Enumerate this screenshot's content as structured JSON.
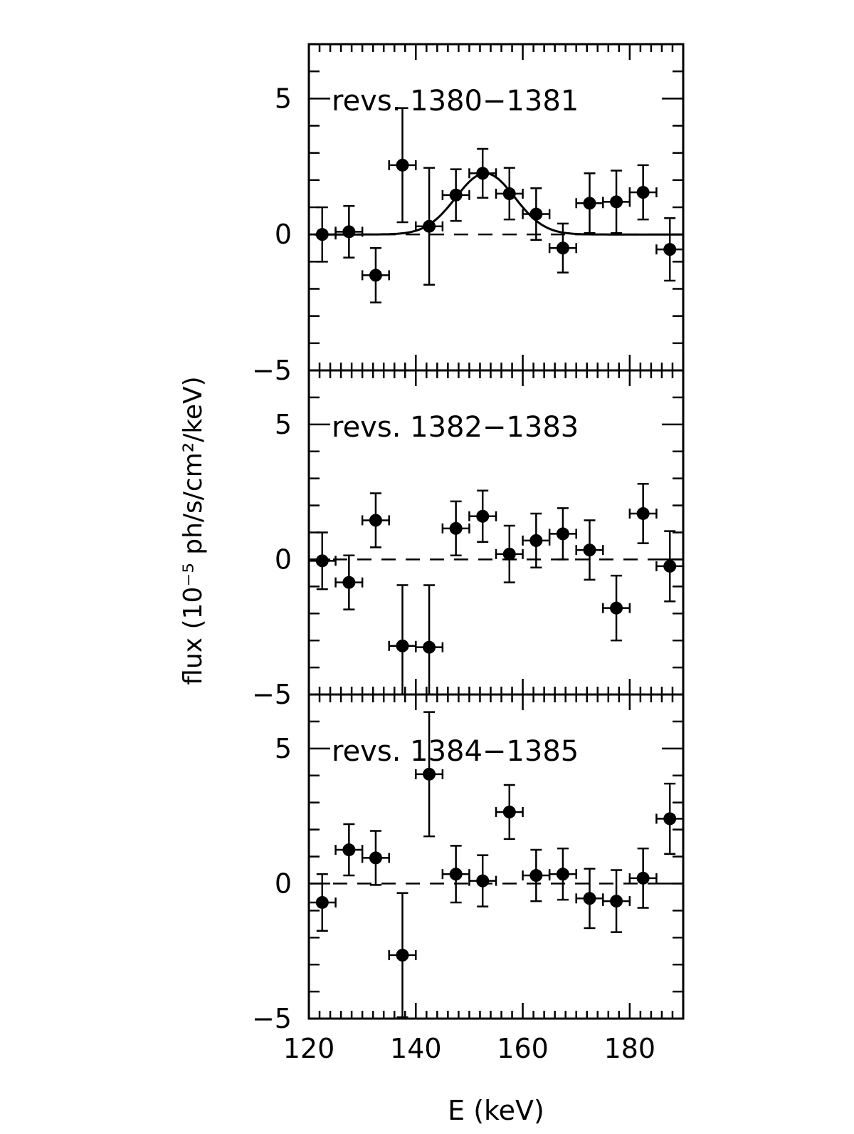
{
  "chart_data": [
    {
      "type": "scatter",
      "label": "revs. 1380−1381",
      "ylim": [
        -5,
        7
      ],
      "yticks": [
        5,
        0,
        -5
      ],
      "ytick_labels": [
        "5",
        "0",
        "−5"
      ],
      "fit": {
        "type": "gaussian",
        "amplitude": 2.25,
        "center": 153.0,
        "sigma": 5.5
      },
      "points": [
        {
          "x": 122.5,
          "y": 0.0,
          "xerr": 2.5,
          "yerr": 1.0
        },
        {
          "x": 127.5,
          "y": 0.1,
          "xerr": 2.5,
          "yerr": 0.95
        },
        {
          "x": 132.5,
          "y": -1.5,
          "xerr": 2.5,
          "yerr": 1.0
        },
        {
          "x": 137.5,
          "y": 2.55,
          "xerr": 2.5,
          "yerr": 2.1
        },
        {
          "x": 142.5,
          "y": 0.3,
          "xerr": 2.5,
          "yerr": 2.15
        },
        {
          "x": 147.5,
          "y": 1.45,
          "xerr": 2.5,
          "yerr": 0.95
        },
        {
          "x": 152.5,
          "y": 2.25,
          "xerr": 2.5,
          "yerr": 0.9
        },
        {
          "x": 157.5,
          "y": 1.5,
          "xerr": 2.5,
          "yerr": 0.95
        },
        {
          "x": 162.5,
          "y": 0.75,
          "xerr": 2.5,
          "yerr": 0.95
        },
        {
          "x": 167.5,
          "y": -0.5,
          "xerr": 2.5,
          "yerr": 0.9
        },
        {
          "x": 172.5,
          "y": 1.15,
          "xerr": 2.5,
          "yerr": 1.1
        },
        {
          "x": 177.5,
          "y": 1.2,
          "xerr": 2.5,
          "yerr": 1.15
        },
        {
          "x": 182.5,
          "y": 1.55,
          "xerr": 2.5,
          "yerr": 1.0
        },
        {
          "x": 187.5,
          "y": -0.55,
          "xerr": 2.5,
          "yerr": 1.15
        }
      ]
    },
    {
      "type": "scatter",
      "label": "revs. 1382−1383",
      "ylim": [
        -5,
        7
      ],
      "yticks": [
        5,
        0,
        -5
      ],
      "ytick_labels": [
        "5",
        "0",
        "−5"
      ],
      "points": [
        {
          "x": 122.5,
          "y": -0.05,
          "xerr": 2.5,
          "yerr": 1.05
        },
        {
          "x": 127.5,
          "y": -0.85,
          "xerr": 2.5,
          "yerr": 1.0
        },
        {
          "x": 132.5,
          "y": 1.45,
          "xerr": 2.5,
          "yerr": 1.0
        },
        {
          "x": 137.5,
          "y": -3.2,
          "xerr": 2.5,
          "yerr": 2.25
        },
        {
          "x": 142.5,
          "y": -3.25,
          "xerr": 2.5,
          "yerr": 2.3
        },
        {
          "x": 147.5,
          "y": 1.15,
          "xerr": 2.5,
          "yerr": 1.0
        },
        {
          "x": 152.5,
          "y": 1.6,
          "xerr": 2.5,
          "yerr": 0.95
        },
        {
          "x": 157.5,
          "y": 0.2,
          "xerr": 2.5,
          "yerr": 1.05
        },
        {
          "x": 162.5,
          "y": 0.7,
          "xerr": 2.5,
          "yerr": 1.0
        },
        {
          "x": 167.5,
          "y": 0.95,
          "xerr": 2.5,
          "yerr": 0.95
        },
        {
          "x": 172.5,
          "y": 0.35,
          "xerr": 2.5,
          "yerr": 1.1
        },
        {
          "x": 177.5,
          "y": -1.8,
          "xerr": 2.5,
          "yerr": 1.2
        },
        {
          "x": 182.5,
          "y": 1.7,
          "xerr": 2.5,
          "yerr": 1.1
        },
        {
          "x": 187.5,
          "y": -0.25,
          "xerr": 2.5,
          "yerr": 1.3
        }
      ]
    },
    {
      "type": "scatter",
      "label": "revs. 1384−1385",
      "ylim": [
        -5,
        7
      ],
      "yticks": [
        5,
        0,
        -5
      ],
      "ytick_labels": [
        "5",
        "0",
        "−5"
      ],
      "points": [
        {
          "x": 122.5,
          "y": -0.7,
          "xerr": 2.5,
          "yerr": 1.05
        },
        {
          "x": 127.5,
          "y": 1.25,
          "xerr": 2.5,
          "yerr": 0.95
        },
        {
          "x": 132.5,
          "y": 0.95,
          "xerr": 2.5,
          "yerr": 1.0
        },
        {
          "x": 137.5,
          "y": -2.65,
          "xerr": 2.5,
          "yerr": 2.3
        },
        {
          "x": 142.5,
          "y": 4.05,
          "xerr": 2.5,
          "yerr": 2.3
        },
        {
          "x": 147.5,
          "y": 0.35,
          "xerr": 2.5,
          "yerr": 1.05
        },
        {
          "x": 152.5,
          "y": 0.1,
          "xerr": 2.5,
          "yerr": 0.95
        },
        {
          "x": 157.5,
          "y": 2.65,
          "xerr": 2.5,
          "yerr": 1.0
        },
        {
          "x": 162.5,
          "y": 0.3,
          "xerr": 2.5,
          "yerr": 0.95
        },
        {
          "x": 167.5,
          "y": 0.35,
          "xerr": 2.5,
          "yerr": 0.95
        },
        {
          "x": 172.5,
          "y": -0.55,
          "xerr": 2.5,
          "yerr": 1.1
        },
        {
          "x": 177.5,
          "y": -0.65,
          "xerr": 2.5,
          "yerr": 1.15
        },
        {
          "x": 182.5,
          "y": 0.2,
          "xerr": 2.5,
          "yerr": 1.1
        },
        {
          "x": 187.5,
          "y": 2.4,
          "xerr": 2.5,
          "yerr": 1.3
        }
      ]
    }
  ],
  "axes": {
    "xlabel": "E (keV)",
    "ylabel": "flux (10⁻⁵ ph/s/cm²/keV)",
    "xlim": [
      120,
      190
    ],
    "xticks": [
      120,
      140,
      160,
      180
    ],
    "xtick_labels": [
      "120",
      "140",
      "160",
      "180"
    ],
    "grid": false
  }
}
